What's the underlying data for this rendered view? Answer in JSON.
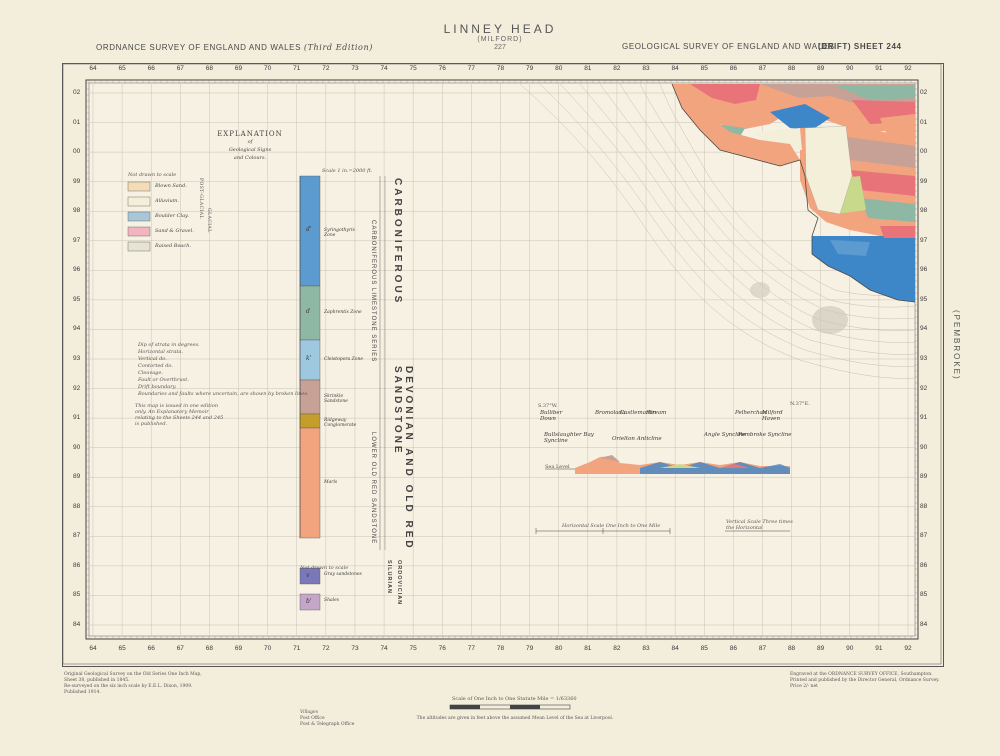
{
  "header": {
    "title": "LINNEY HEAD",
    "subtitle": "(MILFORD)",
    "sheet_no": "227",
    "left": "ORDNANCE SURVEY OF ENGLAND AND WALES",
    "left_edition": "(Third Edition)",
    "right": "GEOLOGICAL SURVEY OF ENGLAND AND WALES",
    "right_drift": "(DRIFT)",
    "right_sheet": "SHEET 244"
  },
  "grid": {
    "top_numbers": [
      "64",
      "65",
      "66",
      "67",
      "68",
      "69",
      "70",
      "71",
      "72",
      "73",
      "74",
      "75",
      "76",
      "77",
      "78",
      "79",
      "80",
      "81",
      "82",
      "83",
      "84",
      "85",
      "86",
      "87",
      "88",
      "89",
      "90",
      "91",
      "92"
    ],
    "side_numbers": [
      "02",
      "01",
      "00",
      "99",
      "98",
      "97",
      "96",
      "95",
      "94",
      "93",
      "92",
      "91",
      "90",
      "89",
      "88",
      "87",
      "86",
      "85",
      "84"
    ]
  },
  "county_label": "(PEMBROKE)",
  "explanation": {
    "title": "EXPLANATION",
    "subtitle1": "of",
    "subtitle2": "Geological Signs",
    "subtitle3": "and Colours.",
    "drift_heading": "Not drawn to scale",
    "drift_items": [
      {
        "label": "Blown Sand.",
        "color": "#f4dcb8"
      },
      {
        "label": "Alluvium.",
        "color": "#f3efd8"
      },
      {
        "label": "Boulder Clay.",
        "color": "#a9c6d8"
      },
      {
        "label": "Sand & Gravel.",
        "color": "#f2b4bf"
      },
      {
        "label": "Raised Beach.",
        "color": "#e6e2d4"
      }
    ],
    "drift_group_a": "POST-GLACIAL",
    "drift_group_b": "GLACIAL"
  },
  "column": {
    "scale_label": "Scale 1 in.=2000 ft.",
    "units": [
      {
        "sym": "d'",
        "name": "Syringothyris Zone",
        "color": "#5b9bd0",
        "h": 110
      },
      {
        "sym": "d",
        "name": "Zaphrentis Zone",
        "color": "#8fb8a4",
        "h": 54
      },
      {
        "sym": "k'",
        "name": "Cleistopora Zone",
        "color": "#9ec8e0",
        "h": 40
      },
      {
        "sym": "",
        "name": "Skrinkle Sandstone",
        "color": "#c7a196",
        "h": 34
      },
      {
        "sym": "",
        "name": "Ridgeway Conglomerate",
        "color": "#c49e2a",
        "h": 14
      },
      {
        "sym": "",
        "name": "Marls",
        "color": "#f2a47e",
        "h": 110
      }
    ],
    "lower_heading": "Not drawn to scale",
    "lower_units": [
      {
        "sym": "v",
        "name": "Gray sandstones",
        "color": "#7a78b8"
      },
      {
        "sym": "b'",
        "name": "Shales",
        "color": "#c3a6c8"
      }
    ],
    "systems": [
      "CARBONIFEROUS",
      "DEVONIAN AND OLD RED SANDSTONE",
      "SILURIAN",
      "ORDOVICIAN"
    ],
    "series": [
      "CARBONIFEROUS LIMESTONE SERIES",
      "LOWER OLD RED SANDSTONE"
    ]
  },
  "signs": {
    "items": [
      "Dip of strata in degrees.",
      "Horizontal strata.",
      "Vertical do.",
      "Contorted do.",
      "Cleavage.",
      "Fault or Overthrust.",
      "Drift boundary.",
      "Boundaries and faults where uncertain, are shown by broken lines."
    ],
    "note": "This map is issued in one edition only. An Explanatory Memoir relating to the Sheets 244 and 245 is published."
  },
  "section": {
    "left_label": "S.37°W.",
    "right_label": "N.37°E.",
    "places": [
      "Bulliber Down",
      "Bromolada",
      "Castlemartin",
      "Stream",
      "Pelherchan",
      "Milford Haven"
    ],
    "structures": [
      "Bullslaughter Bay Syncline",
      "Orielton Anticline",
      "Angle Syncline",
      "Pembroke Syncline"
    ],
    "horizontal_scale": "Horizontal Scale One Inch to One Mile",
    "vertical_scale": "Vertical Scale Three times the Horizontal",
    "sea_level": "Sea Level"
  },
  "footer": {
    "left_notes": [
      "Original Geological Survey on the Old Series One Inch Map, Sheet 38, published in 1845.",
      "Re-surveyed on the six inch scale by E.E.L. Dixon, 1909.",
      "Published 1914."
    ],
    "scale_text": "Scale of One Inch to One Statute Mile = 1/63360",
    "heights_note": "The altitudes are given in feet above the assumed Mean Level of the Sea at Liverpool.",
    "villages_title": "Villages",
    "villages": [
      "Post Office",
      "Post & Telegraph Office"
    ],
    "right_notes": [
      "Engraved at the ORDNANCE SURVEY OFFICE, Southampton.",
      "Printed and published by the Director General, Ordnance Survey.",
      "Price 2/- net"
    ]
  },
  "legend_colors": {
    "limestone_blue": "#3d86c8",
    "sandstone_orange": "#f2a47e",
    "red_marl": "#e8747a",
    "brown": "#c7a196",
    "green": "#8fb8a4"
  }
}
